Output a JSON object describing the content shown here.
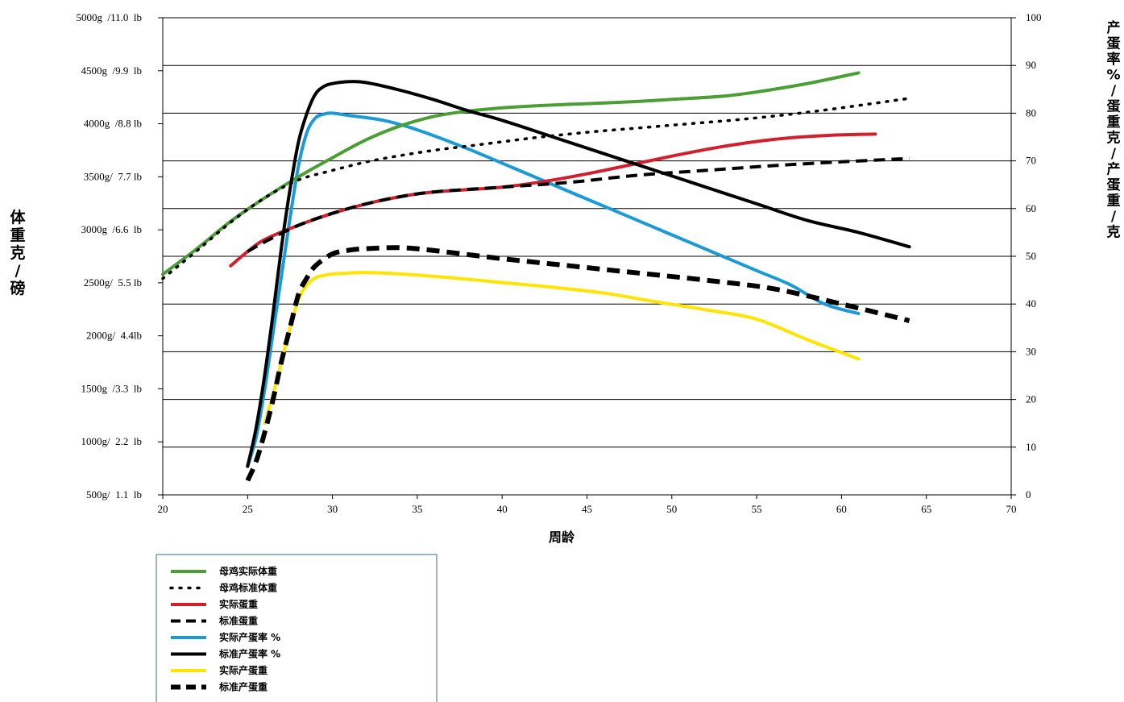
{
  "chart_data": {
    "type": "line",
    "xlabel": "周龄",
    "ylabel_left": "体重克/磅",
    "ylabel_right": "产蛋率%/蛋重克/产蛋重/克",
    "xlim": [
      20,
      70
    ],
    "x_ticks": [
      "20",
      "25",
      "30",
      "35",
      "40",
      "45",
      "50",
      "55",
      "60",
      "65",
      "70"
    ],
    "ylim_left": [
      500,
      5000
    ],
    "y_left_ticks": [
      {
        "value": 500,
        "label": "500g/  1.1  lb"
      },
      {
        "value": 1000,
        "label": "1000g/  2.2  lb"
      },
      {
        "value": 1500,
        "label": "1500g  /3.3  lb"
      },
      {
        "value": 2000,
        "label": "2000g/  4.4lb"
      },
      {
        "value": 2500,
        "label": "2500g/  5.5 lb"
      },
      {
        "value": 3000,
        "label": "3000g  /6.6  lb"
      },
      {
        "value": 3500,
        "label": "3500g/  7.7 lb"
      },
      {
        "value": 4000,
        "label": "4000g  /8.8 lb"
      },
      {
        "value": 4500,
        "label": "4500g  /9.9  lb"
      },
      {
        "value": 5000,
        "label": "5000g  /11.0  lb"
      }
    ],
    "ylim_right": [
      0,
      100
    ],
    "y_right_ticks": [
      "0",
      "10",
      "20",
      "30",
      "40",
      "50",
      "60",
      "70",
      "80",
      "90",
      "100"
    ],
    "grid": "horizontal",
    "legend_position": "bottom-left",
    "series": [
      {
        "name": "母鸡实际体重",
        "axis": "left",
        "color": "#4a9e35",
        "style": "solid",
        "x": [
          20,
          22,
          24,
          26,
          28,
          30,
          32,
          34,
          36,
          38,
          40,
          42,
          45,
          48,
          50,
          53,
          55,
          58,
          61
        ],
        "y": [
          2580,
          2820,
          3080,
          3300,
          3500,
          3680,
          3850,
          3980,
          4070,
          4120,
          4150,
          4170,
          4190,
          4210,
          4230,
          4260,
          4300,
          4380,
          4480
        ]
      },
      {
        "name": "母鸡标准体重",
        "axis": "left",
        "color": "#000000",
        "style": "dotted",
        "x": [
          20,
          22,
          24,
          26,
          28,
          30,
          32,
          34,
          36,
          38,
          40,
          42,
          45,
          48,
          51,
          54,
          57,
          60,
          64
        ],
        "y": [
          2540,
          2800,
          3070,
          3300,
          3470,
          3560,
          3640,
          3700,
          3750,
          3790,
          3830,
          3870,
          3920,
          3960,
          4000,
          4040,
          4090,
          4150,
          4240
        ]
      },
      {
        "name": "实际蛋重",
        "axis": "right",
        "color": "#d0202e",
        "style": "solid",
        "x": [
          24,
          25,
          26,
          28,
          30,
          32,
          34,
          36,
          40,
          43,
          46,
          50,
          53,
          56,
          59,
          62
        ],
        "y": [
          48,
          51,
          53.5,
          56.5,
          59,
          61,
          62.5,
          63.5,
          64.5,
          66,
          68,
          71,
          73,
          74.5,
          75.3,
          75.6
        ]
      },
      {
        "name": "标准蛋重",
        "axis": "right",
        "color": "#000000",
        "style": "dashed",
        "x": [
          25,
          26,
          28,
          30,
          32,
          34,
          36,
          40,
          44,
          48,
          52,
          56,
          60,
          64
        ],
        "y": [
          51,
          53,
          56.5,
          59,
          61,
          62.5,
          63.5,
          64.5,
          65.5,
          67,
          68,
          69,
          69.8,
          70.5
        ]
      },
      {
        "name": "实际产蛋率 %",
        "axis": "right",
        "color": "#1a9ad6",
        "style": "solid",
        "x": [
          25,
          25.5,
          26,
          26.5,
          27,
          27.5,
          28,
          28.5,
          29,
          29.5,
          30,
          31,
          33,
          35,
          38,
          41,
          44,
          47,
          50,
          53,
          55,
          57,
          59,
          61
        ],
        "y": [
          6,
          12,
          22,
          34,
          46,
          58,
          69,
          76,
          79,
          79.8,
          80,
          79.5,
          78.5,
          76.5,
          72.5,
          68,
          63.5,
          59,
          54.5,
          50,
          47,
          44,
          40,
          38
        ]
      },
      {
        "name": "标准产蛋率 %",
        "axis": "right",
        "color": "#000000",
        "style": "solid",
        "x": [
          25,
          25.5,
          26,
          26.5,
          27,
          27.5,
          28,
          28.5,
          29,
          29.5,
          30,
          31,
          32,
          34,
          36,
          38,
          40,
          43,
          46,
          49,
          52,
          55,
          58,
          61,
          64
        ],
        "y": [
          6,
          14,
          25,
          38,
          52,
          64,
          74,
          80,
          84,
          85.6,
          86.2,
          86.6,
          86.4,
          84.8,
          82.8,
          80.5,
          78.5,
          75,
          71.5,
          68,
          64.5,
          61,
          57.5,
          55,
          52
        ]
      },
      {
        "name": "实际产蛋重",
        "axis": "right",
        "color": "#ffe500",
        "style": "solid",
        "x": [
          26,
          26.5,
          27,
          27.5,
          28,
          28.5,
          29,
          29.5,
          30,
          31,
          32,
          34,
          37,
          40,
          43,
          46,
          49,
          52,
          55,
          58,
          61
        ],
        "y": [
          15,
          21,
          28,
          35,
          41,
          44,
          45.5,
          46,
          46.3,
          46.5,
          46.6,
          46.3,
          45.5,
          44.5,
          43.5,
          42.3,
          40.5,
          38.8,
          36.8,
          32.5,
          28.5
        ]
      },
      {
        "name": "标准产蛋重",
        "axis": "right",
        "color": "#000000",
        "style": "dashed-bold",
        "x": [
          25,
          25.5,
          26,
          26.5,
          27,
          27.5,
          28,
          28.5,
          29,
          30,
          31,
          32,
          34,
          36,
          40,
          44,
          48,
          52,
          56,
          60,
          64
        ],
        "y": [
          3,
          7,
          13,
          20,
          28,
          35,
          42,
          45.5,
          48,
          50.5,
          51.3,
          51.6,
          51.8,
          51.2,
          49.5,
          48,
          46.5,
          45,
          43.2,
          40,
          36.5
        ]
      }
    ]
  }
}
